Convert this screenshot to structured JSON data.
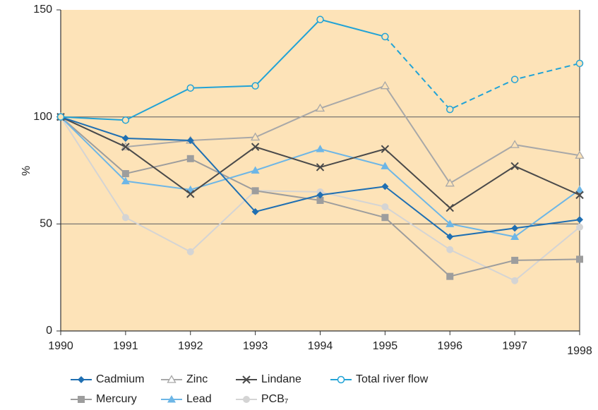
{
  "chart_data": {
    "type": "line",
    "y_label": "%",
    "categories": [
      "1990",
      "1991",
      "1992",
      "1993",
      "1994",
      "1995",
      "1996",
      "1997",
      "1998"
    ],
    "ylim": [
      0,
      150
    ],
    "yticks": [
      0,
      50,
      100,
      150
    ],
    "grid": true,
    "background": "#fde3b8",
    "series": [
      {
        "name": "Cadmium",
        "color": "#1f6fb2",
        "marker": "diamond",
        "values": [
          100,
          90,
          89,
          55.7,
          63.5,
          67.5,
          44,
          48,
          52
        ]
      },
      {
        "name": "Zinc",
        "color": "#a8a8a8",
        "marker": "triangle-open",
        "values": [
          100,
          86,
          89,
          90.5,
          104,
          114.5,
          69,
          87,
          82
        ]
      },
      {
        "name": "Lindane",
        "color": "#4a4a4a",
        "marker": "x",
        "values": [
          100,
          86,
          64,
          86,
          76.5,
          85,
          57.5,
          77,
          63.5
        ]
      },
      {
        "name": "Total river flow",
        "color": "#22a3d6",
        "marker": "circle-open",
        "dashed_from": "1995",
        "values": [
          100,
          98.5,
          113.5,
          114.5,
          145.5,
          137.5,
          103.5,
          117.5,
          125
        ]
      },
      {
        "name": "Mercury",
        "color": "#9d9d9d",
        "marker": "square",
        "values": [
          100,
          73.5,
          80.5,
          65.5,
          61,
          53,
          25.5,
          33,
          33.5
        ]
      },
      {
        "name": "Lead",
        "color": "#6db6e6",
        "marker": "triangle",
        "values": [
          100,
          70,
          66,
          75,
          85,
          77,
          50,
          44,
          66
        ]
      },
      {
        "name": "PCB₇",
        "color": "#d4d4d4",
        "marker": "circle",
        "values": [
          100,
          53,
          37,
          65.5,
          65,
          58,
          38,
          23.5,
          48.5
        ]
      }
    ]
  }
}
